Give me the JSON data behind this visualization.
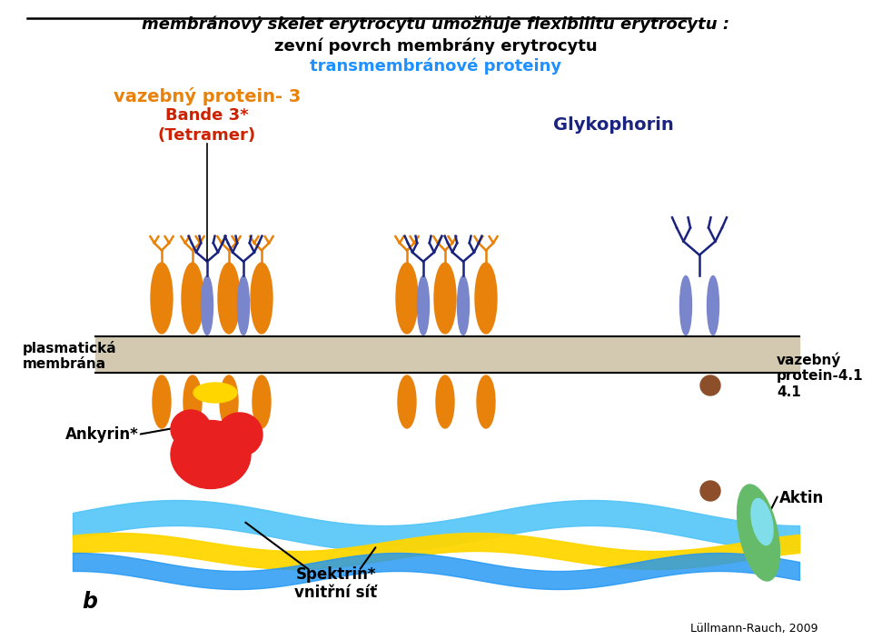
{
  "title_line1": "membránový skelet erytrocytu umožňuje flexibilitu erytrocytu :",
  "title_line2": "zevní povrch membrány erytrocytu",
  "title_line3": "transmembránové proteiny",
  "label_vazebny": "vazebný protein- 3",
  "label_bande": "Bande 3*",
  "label_tetramer": "(Tetramer)",
  "label_glykophorin": "Glykophorin",
  "label_plasmaticka": "plasmatická",
  "label_membrana": "membrána",
  "label_ankyrin": "Ankyrin*",
  "label_spektrin": "Spektrin*",
  "label_vnitrni": "vnitřní síť",
  "label_b": "b",
  "label_aktin": "Aktin",
  "label_vazebny41": "vazebný",
  "label_protein41": "protein-4.1",
  "label_41": "4.1",
  "label_citation": "Lüllmann-Rauch, 2009",
  "color_orange": "#E8820A",
  "color_red": "#E82020",
  "color_blue_dark": "#1A237E",
  "color_blue_light": "#7986CB",
  "color_membrane_bg": "#D3C8B0",
  "color_spektrin_cyan": "#4FC3F7",
  "color_spektrin_yellow": "#FFD600",
  "color_spektrin_blue": "#2196F3",
  "color_green": "#66BB6A",
  "color_brown": "#8D4E2A",
  "color_title_blue": "#1E90FF",
  "bg_color": "#FFFFFF"
}
